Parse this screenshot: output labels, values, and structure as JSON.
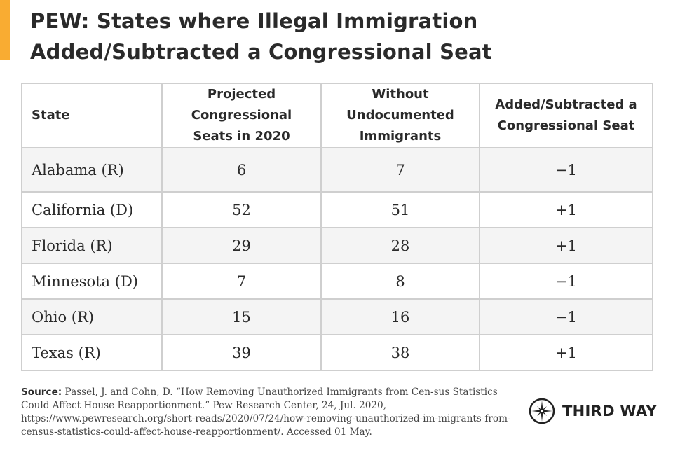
{
  "title_line1": "PEW: States where Illegal Immigration",
  "title_line2": "Added/Subtracted a Congressional Seat",
  "accent_color": "#f9ac32",
  "chart_data": {
    "type": "table",
    "columns": [
      "State",
      "Projected Congressional Seats in 2020",
      "Without Undocumented Immigrants",
      "Added/Subtracted a Congressional Seat"
    ],
    "header_lines": [
      [
        "State"
      ],
      [
        "Projected",
        "Congressional",
        "Seats in 2020"
      ],
      [
        "Without",
        "Undocumented",
        "Immigrants"
      ],
      [
        "Added/Subtracted a",
        "Congressional Seat"
      ]
    ],
    "rows": [
      [
        "Alabama (R)",
        "6",
        "7",
        "−1"
      ],
      [
        "California (D)",
        "52",
        "51",
        "+1"
      ],
      [
        "Florida (R)",
        "29",
        "28",
        "+1"
      ],
      [
        "Minnesota (D)",
        "7",
        "8",
        "−1"
      ],
      [
        "Ohio (R)",
        "15",
        "16",
        "−1"
      ],
      [
        "Texas (R)",
        "39",
        "38",
        "+1"
      ]
    ]
  },
  "source": {
    "label": "Source:",
    "text": " Passel, J. and Cohn, D. “How Removing Unauthorized Immigrants from Cen-sus Statistics Could Affect House Reapportionment.” Pew Research Center, 24, Jul. 2020, https://www.pewresearch.org/short-reads/2020/07/24/how-removing-unauthorized-im-migrants-from-census-statistics-could-affect-house-reapportionment/. Accessed 01 May."
  },
  "logo": {
    "text": "THIRD WAY",
    "icon": "compass-star-icon"
  }
}
